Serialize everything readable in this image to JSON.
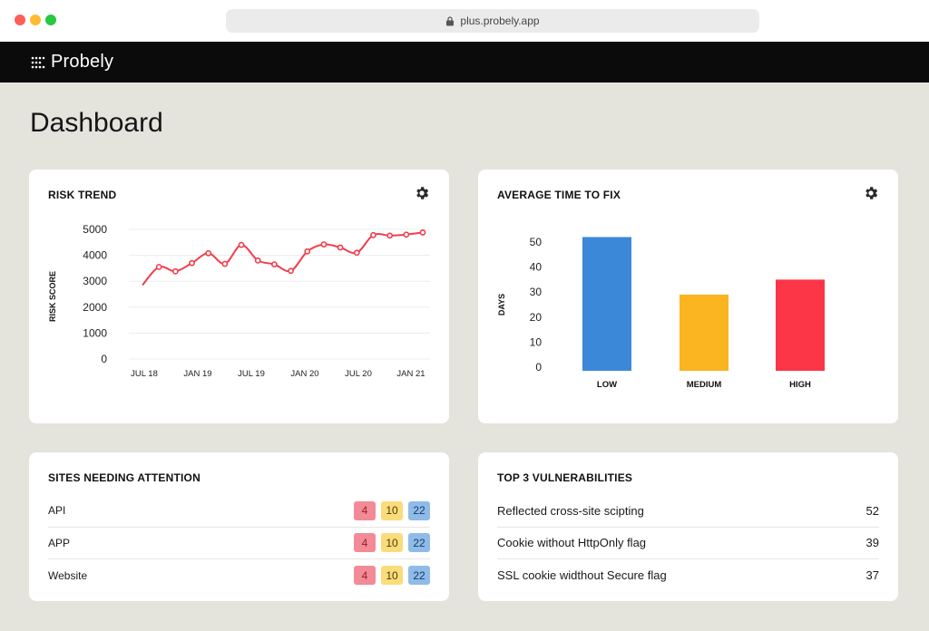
{
  "browser": {
    "url": "plus.probely.app"
  },
  "app": {
    "brand": "Probely"
  },
  "page": {
    "title": "Dashboard"
  },
  "risk_trend": {
    "title": "RISK TREND"
  },
  "avg_fix": {
    "title": "AVERAGE TIME TO FIX"
  },
  "chart_data": [
    {
      "type": "line",
      "title": "RISK TREND",
      "ylabel": "RISK SCORE",
      "xlabel": "",
      "ylim": [
        0,
        5000
      ],
      "yticks": [
        0,
        1000,
        2000,
        3000,
        4000,
        5000
      ],
      "x_tick_labels": [
        "JUL 18",
        "JAN 19",
        "JUL 19",
        "JAN 20",
        "JUL 20",
        "JAN 21"
      ],
      "color": "#f03e4d",
      "series": [
        {
          "values": [
            2850,
            3550,
            3380,
            3700,
            4080,
            3670,
            4400,
            3800,
            3650,
            3400,
            4150,
            4420,
            4300,
            4100,
            4780,
            4760,
            4800,
            4880
          ]
        }
      ]
    },
    {
      "type": "bar",
      "title": "AVERAGE TIME TO FIX",
      "ylabel": "DAYS",
      "xlabel": "",
      "ylim": [
        0,
        50
      ],
      "yticks": [
        0,
        10,
        20,
        30,
        40,
        50
      ],
      "categories": [
        "LOW",
        "MEDIUM",
        "HIGH"
      ],
      "values": [
        52,
        29,
        35
      ],
      "colors": [
        "#3c88d8",
        "#fab521",
        "#fc3547"
      ]
    }
  ],
  "sites": {
    "title": "SITES NEEDING ATTENTION",
    "rows": [
      {
        "name": "API",
        "high": "4",
        "medium": "10",
        "low": "22"
      },
      {
        "name": "APP",
        "high": "4",
        "medium": "10",
        "low": "22"
      },
      {
        "name": "Website",
        "high": "4",
        "medium": "10",
        "low": "22"
      }
    ]
  },
  "vulns": {
    "title": "TOP 3 VULNERABILITIES",
    "rows": [
      {
        "name": "Reflected cross-site scipting",
        "count": "52"
      },
      {
        "name": "Cookie without HttpOnly flag",
        "count": "39"
      },
      {
        "name": "SSL cookie widthout Secure flag",
        "count": "37"
      }
    ]
  }
}
